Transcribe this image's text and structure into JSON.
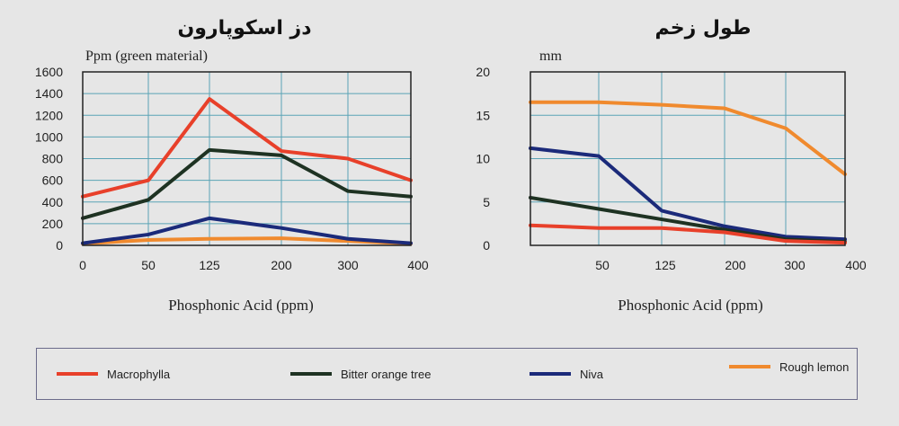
{
  "chart_data": [
    {
      "type": "line",
      "title": "دز اسکوپارون",
      "ylabel": "Ppm (green material)",
      "xlabel": "Phosphonic Acid (ppm)",
      "categories": [
        "0",
        "50",
        "125",
        "200",
        "300",
        "400"
      ],
      "ylim": [
        0,
        1600
      ],
      "yticks": [
        0,
        200,
        400,
        600,
        800,
        1000,
        1200,
        1400,
        1600
      ],
      "grid": true,
      "series": [
        {
          "name": "Macrophylla",
          "color": "#e8402a",
          "values": [
            450,
            600,
            1350,
            870,
            800,
            600
          ]
        },
        {
          "name": "Bitter orange tree",
          "color": "#1e3222",
          "values": [
            250,
            420,
            880,
            830,
            500,
            450
          ]
        },
        {
          "name": "Niva",
          "color": "#1b2a7a",
          "values": [
            20,
            100,
            250,
            160,
            60,
            20
          ]
        },
        {
          "name": "Rough lemon",
          "color": "#f08a2e",
          "values": [
            15,
            50,
            60,
            65,
            40,
            15
          ]
        }
      ]
    },
    {
      "type": "line",
      "title": "طول زخم",
      "ylabel": "mm",
      "xlabel": "Phosphonic Acid (ppm)",
      "categories": [
        "",
        "50",
        "125",
        "200",
        "300",
        "400"
      ],
      "ylim": [
        0,
        20
      ],
      "yticks": [
        0,
        5,
        10,
        15,
        20
      ],
      "grid": true,
      "series": [
        {
          "name": "Macrophylla",
          "color": "#e8402a",
          "values": [
            2.3,
            2.0,
            2.0,
            1.5,
            0.5,
            0.3
          ]
        },
        {
          "name": "Bitter orange tree",
          "color": "#1e3222",
          "values": [
            5.5,
            4.2,
            3.0,
            1.8,
            0.7,
            0.4
          ]
        },
        {
          "name": "Niva",
          "color": "#1b2a7a",
          "values": [
            11.2,
            10.3,
            4.0,
            2.2,
            1.0,
            0.7
          ]
        },
        {
          "name": "Rough lemon",
          "color": "#f08a2e",
          "values": [
            16.5,
            16.5,
            16.2,
            15.8,
            13.5,
            8.2
          ]
        }
      ]
    }
  ],
  "legend": {
    "items": [
      {
        "label": "Macrophylla",
        "color": "#e8402a"
      },
      {
        "label": "Bitter orange tree",
        "color": "#1e3222"
      },
      {
        "label": "Niva",
        "color": "#1b2a7a"
      },
      {
        "label": "Rough lemon",
        "color": "#f08a2e"
      }
    ]
  }
}
